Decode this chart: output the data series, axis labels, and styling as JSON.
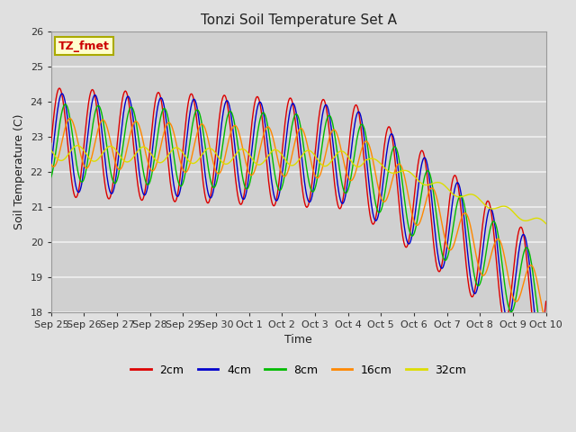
{
  "title": "Tonzi Soil Temperature Set A",
  "xlabel": "Time",
  "ylabel": "Soil Temperature (C)",
  "ylim": [
    18.0,
    26.0
  ],
  "yticks": [
    18.0,
    19.0,
    20.0,
    21.0,
    22.0,
    23.0,
    24.0,
    25.0,
    26.0
  ],
  "xtick_labels": [
    "Sep 25",
    "Sep 26",
    "Sep 27",
    "Sep 28",
    "Sep 29",
    "Sep 30",
    "Oct 1",
    "Oct 2",
    "Oct 3",
    "Oct 4",
    "Oct 5",
    "Oct 6",
    "Oct 7",
    "Oct 8",
    "Oct 9",
    "Oct 10"
  ],
  "series_colors": [
    "#dd0000",
    "#0000cc",
    "#00bb00",
    "#ff8800",
    "#dddd00"
  ],
  "series_labels": [
    "2cm",
    "4cm",
    "8cm",
    "16cm",
    "32cm"
  ],
  "legend_label": "TZ_fmet",
  "fig_bg_color": "#e0e0e0",
  "plot_bg_color": "#d0d0d0",
  "grid_color": "#f0f0f0",
  "figsize": [
    6.4,
    4.8
  ],
  "dpi": 100
}
